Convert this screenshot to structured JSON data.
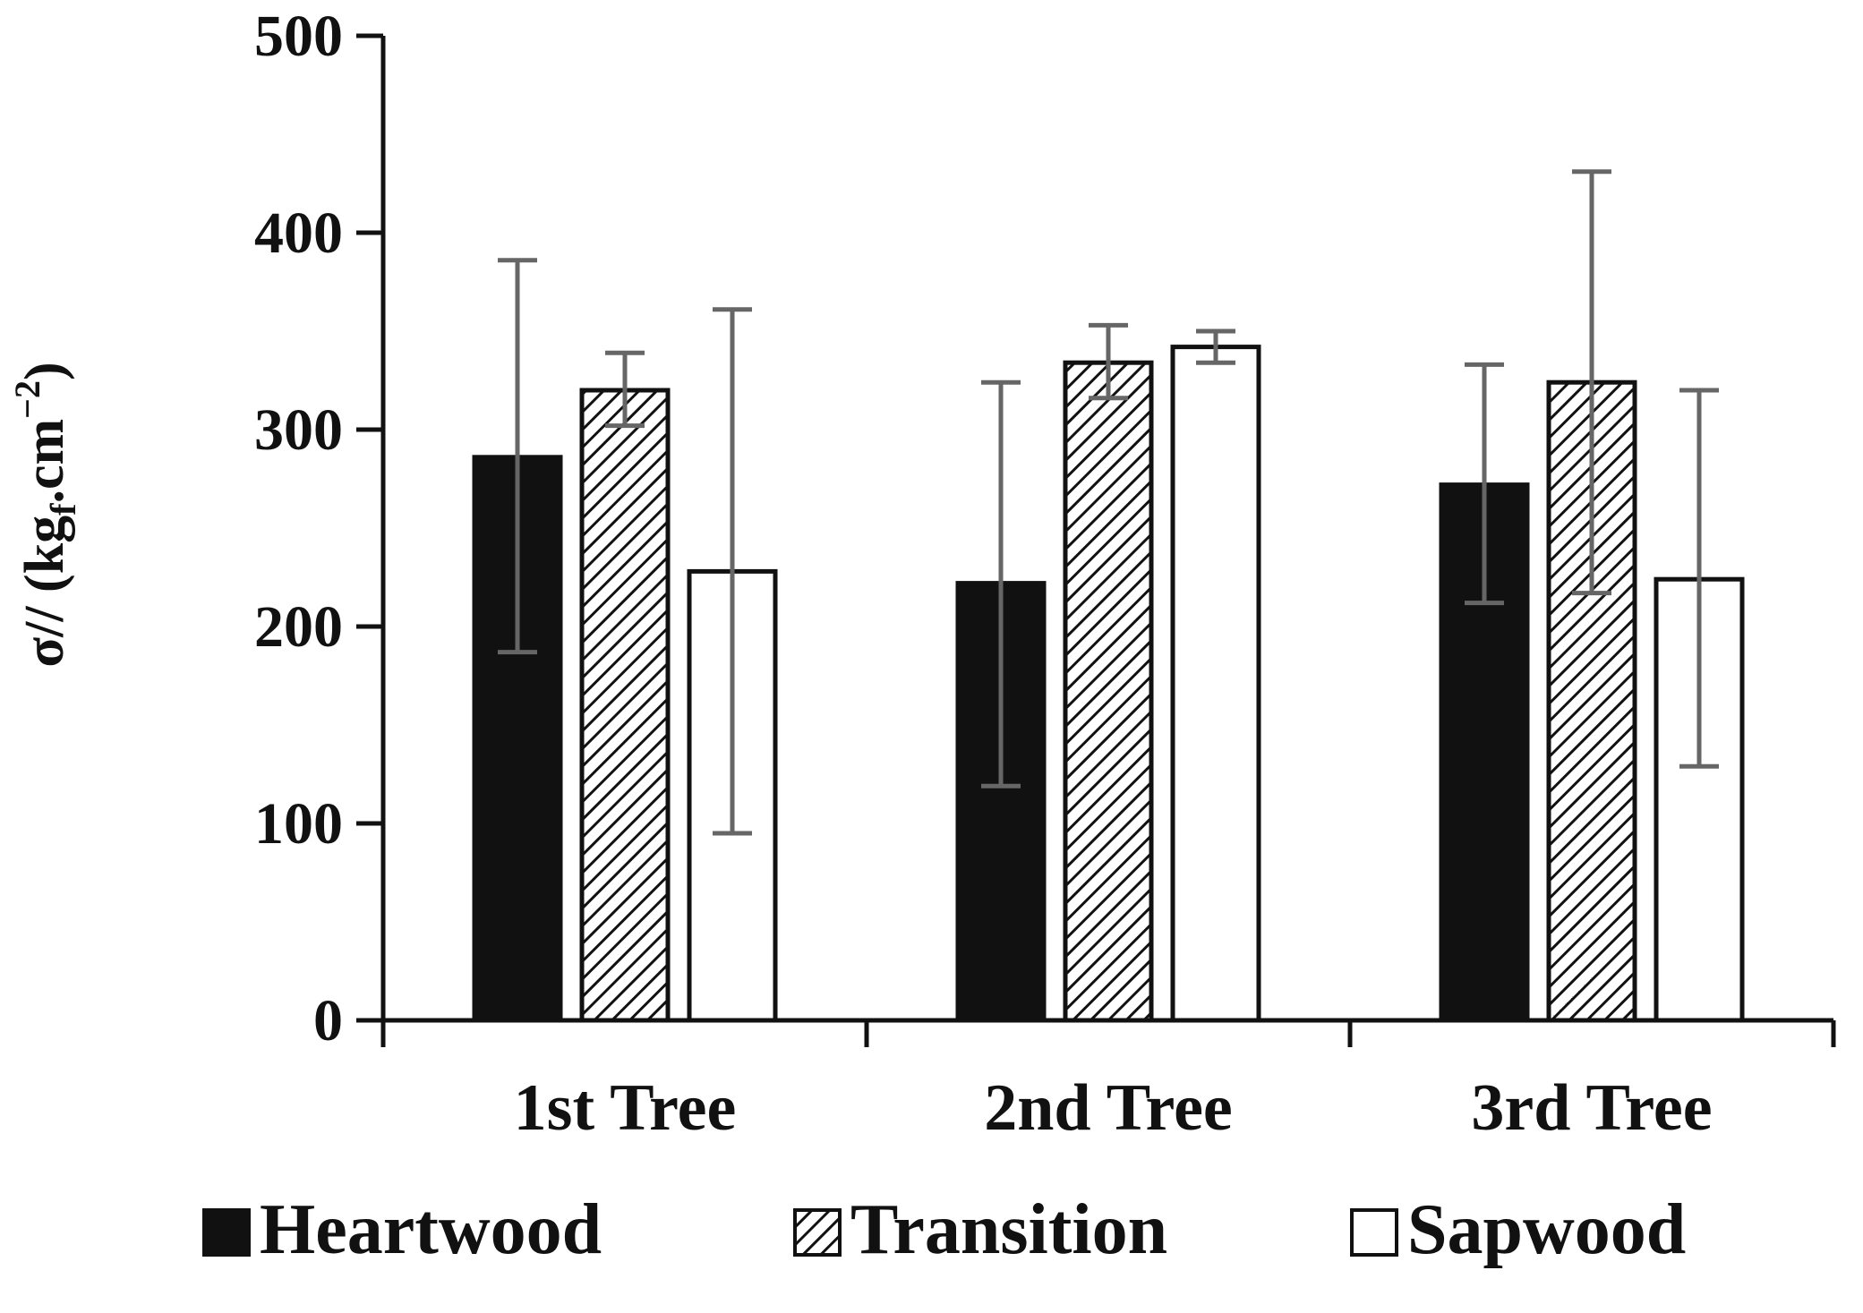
{
  "chart_data": {
    "type": "bar",
    "title": "",
    "xlabel": "",
    "ylabel": {
      "main": "σ// (kg",
      "subscript": "f",
      "middle": ".cm",
      "superscript": "−2",
      "end": ")"
    },
    "ylim": [
      0,
      500
    ],
    "yticks": [
      "0",
      "100",
      "200",
      "300",
      "400",
      "500"
    ],
    "categories": [
      "1st Tree",
      "2nd Tree",
      "3rd Tree"
    ],
    "series": [
      {
        "name": "Heartwood",
        "fill": "solid",
        "color": "#111111",
        "values": [
          286,
          222,
          272
        ],
        "error_low": [
          187,
          119,
          212
        ],
        "error_high": [
          386,
          324,
          333
        ]
      },
      {
        "name": "Transition",
        "fill": "hatched",
        "color": "#111111",
        "values": [
          320,
          334,
          324
        ],
        "error_low": [
          302,
          316,
          217
        ],
        "error_high": [
          339,
          353,
          431
        ]
      },
      {
        "name": "Sapwood",
        "fill": "open",
        "color": "#ffffff",
        "values": [
          228,
          342,
          224
        ],
        "error_low": [
          95,
          334,
          129
        ],
        "error_high": [
          361,
          350,
          320
        ]
      }
    ],
    "error_bar_color": "#666666",
    "grid": false,
    "legend_position": "bottom"
  }
}
